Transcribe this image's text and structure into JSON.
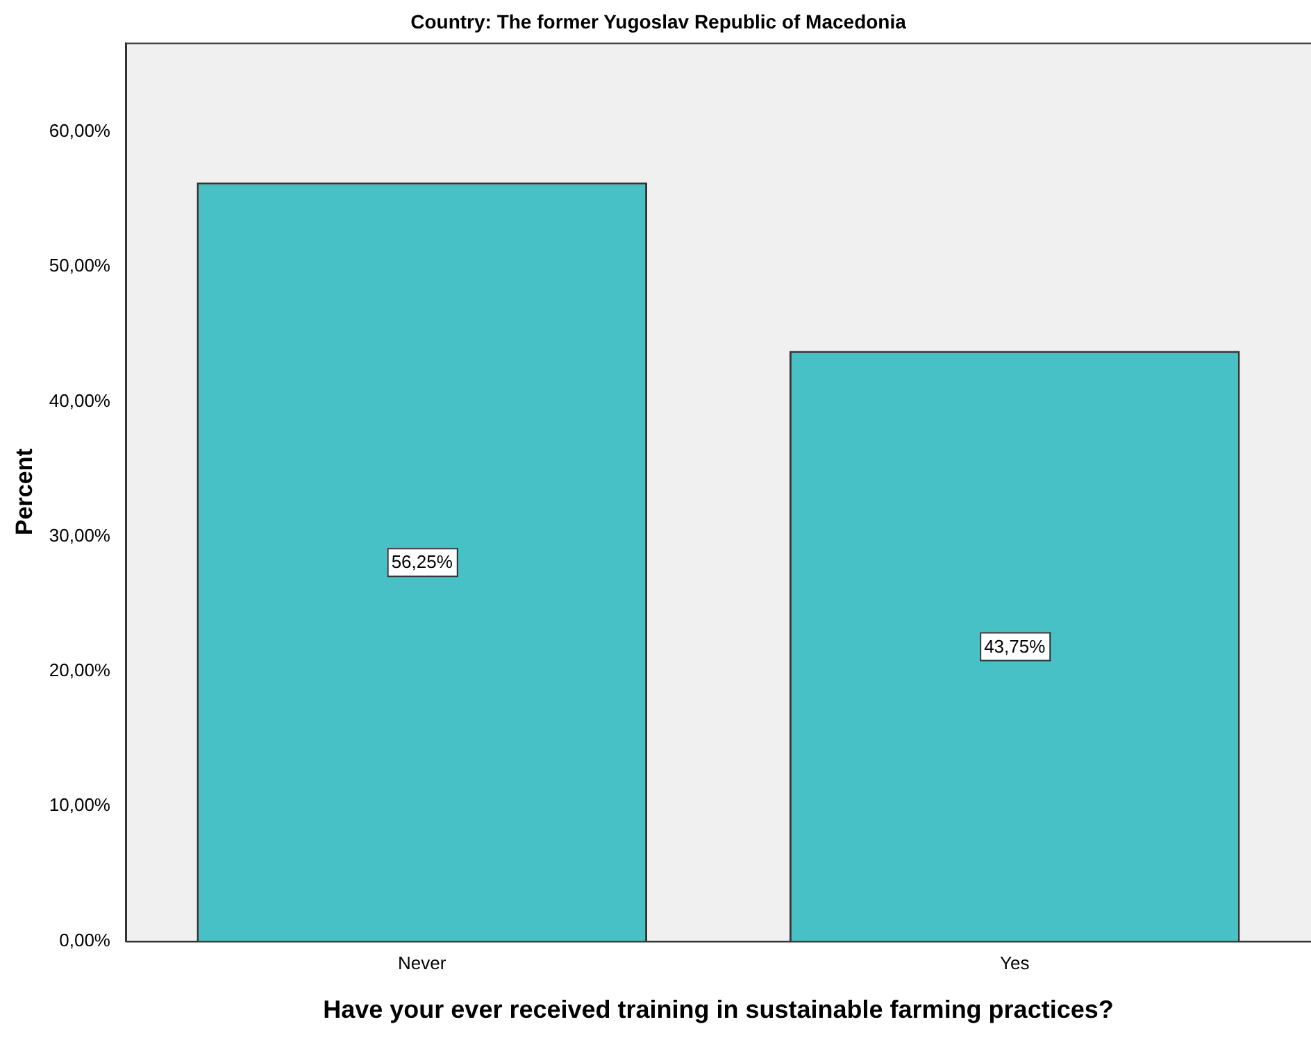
{
  "chart_data": {
    "type": "bar",
    "title": "Country: The former Yugoslav Republic of Macedonia",
    "xlabel": "Have your ever received training in sustainable farming practices?",
    "ylabel": "Percent",
    "categories": [
      "Never",
      "Yes"
    ],
    "values": [
      56.25,
      43.75
    ],
    "value_labels": [
      "56,25%",
      "43,75%"
    ],
    "color": "#48c1c6",
    "ylim": [
      0,
      66.6
    ],
    "yticks": [
      {
        "value": 0,
        "label": "0,00%"
      },
      {
        "value": 10,
        "label": "10,00%"
      },
      {
        "value": 20,
        "label": "20,00%"
      },
      {
        "value": 30,
        "label": "30,00%"
      },
      {
        "value": 40,
        "label": "40,00%"
      },
      {
        "value": 50,
        "label": "50,00%"
      },
      {
        "value": 60,
        "label": "60,00%"
      }
    ],
    "grid": false,
    "legend": false
  }
}
